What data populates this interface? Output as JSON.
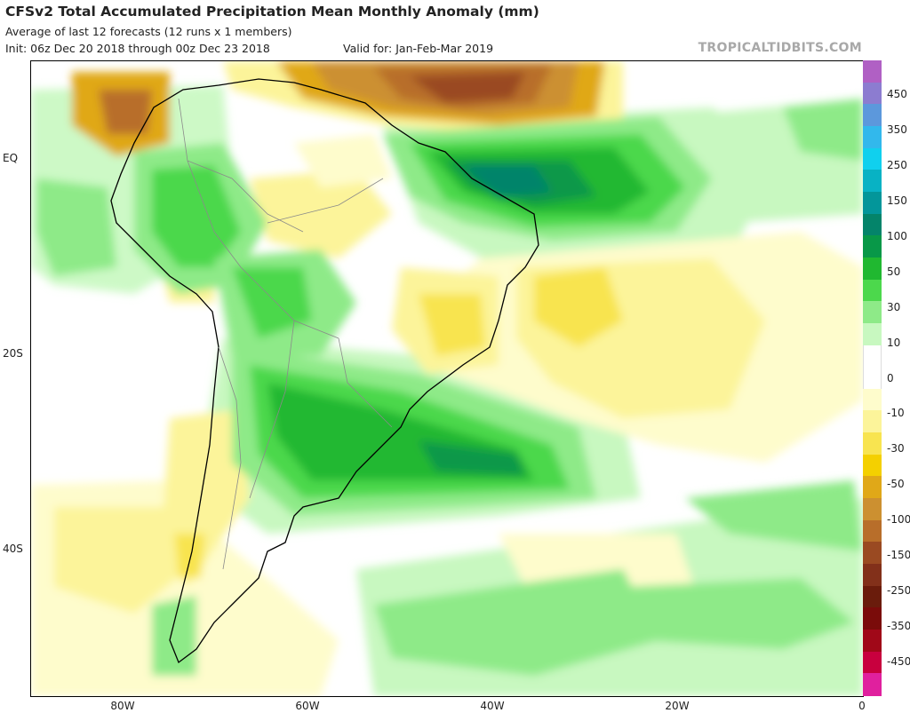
{
  "header": {
    "title": "CFSv2 Total Accumulated Precipitation Mean Monthly Anomaly (mm)",
    "subtitle": "Average of last 12 forecasts (12 runs x 1 members)",
    "init": "Init: 06z Dec 20 2018 through 00z Dec 23 2018",
    "valid": "Valid for: Jan-Feb-Mar 2019",
    "brand": "TROPICALTIDBITS.COM"
  },
  "axes": {
    "lat_labels": [
      "EQ",
      "20S",
      "40S"
    ],
    "lon_labels": [
      "80W",
      "60W",
      "40W",
      "20W",
      "0"
    ]
  },
  "colorbar": {
    "labels": [
      "450",
      "350",
      "250",
      "150",
      "100",
      "50",
      "30",
      "10",
      "0",
      "-10",
      "-30",
      "-50",
      "-100",
      "-150",
      "-250",
      "-350",
      "-450"
    ],
    "colors": [
      "#e0209e",
      "#c8003e",
      "#a00818",
      "#7a0c0a",
      "#6a1c0c",
      "#82301a",
      "#9a4a22",
      "#b86e2a",
      "#cc9030",
      "#e0a818",
      "#f4d000",
      "#f8e450",
      "#fcf49a",
      "#fefccc",
      "#ffffff",
      "#ffffff",
      "#c8f8c0",
      "#8eea88",
      "#4cd84c",
      "#20b830",
      "#089848",
      "#04846a",
      "#03969a",
      "#08b2c4",
      "#10d0ee",
      "#32b8ec",
      "#5c98dc",
      "#8c7cd0",
      "#b060c4"
    ]
  }
}
